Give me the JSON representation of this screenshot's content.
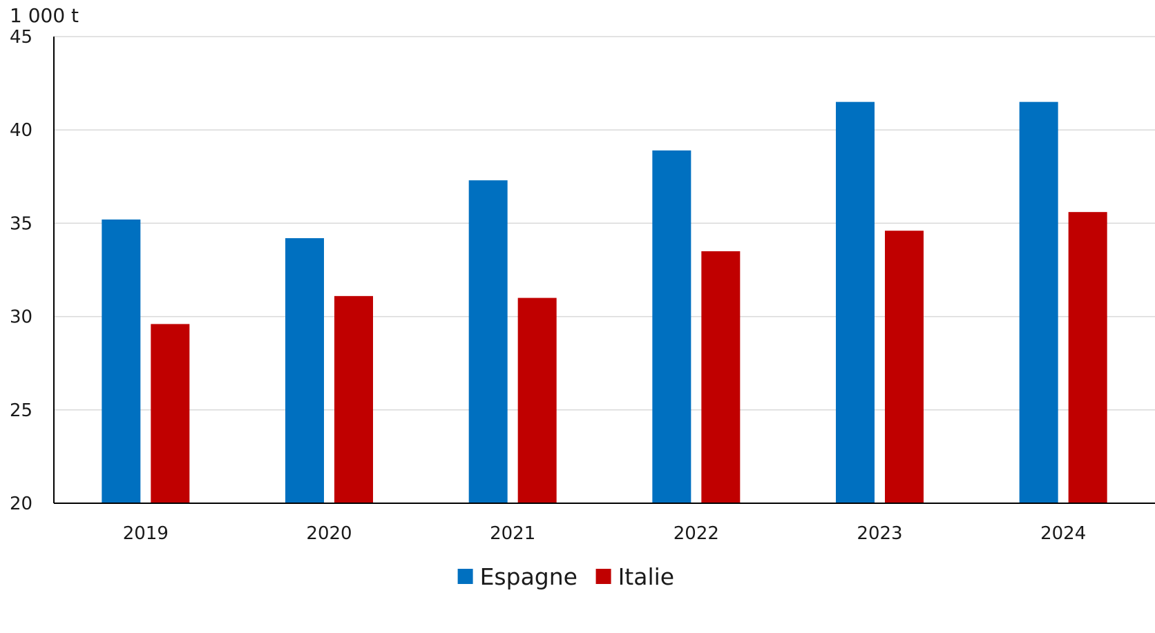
{
  "chart_data": {
    "type": "bar",
    "unit_label": "1 000 t",
    "categories": [
      "2019",
      "2020",
      "2021",
      "2022",
      "2023",
      "2024"
    ],
    "series": [
      {
        "name": "Espagne",
        "color": "#0070c0",
        "values": [
          35.2,
          34.2,
          37.3,
          38.9,
          41.5,
          41.5
        ]
      },
      {
        "name": "Italie",
        "color": "#c00000",
        "values": [
          29.6,
          31.1,
          31.0,
          33.5,
          34.6,
          35.6
        ]
      }
    ],
    "ylim": [
      20,
      45
    ],
    "yticks": [
      "20",
      "25",
      "30",
      "35",
      "40",
      "45"
    ],
    "grid": true,
    "legend_position": "bottom-center"
  }
}
